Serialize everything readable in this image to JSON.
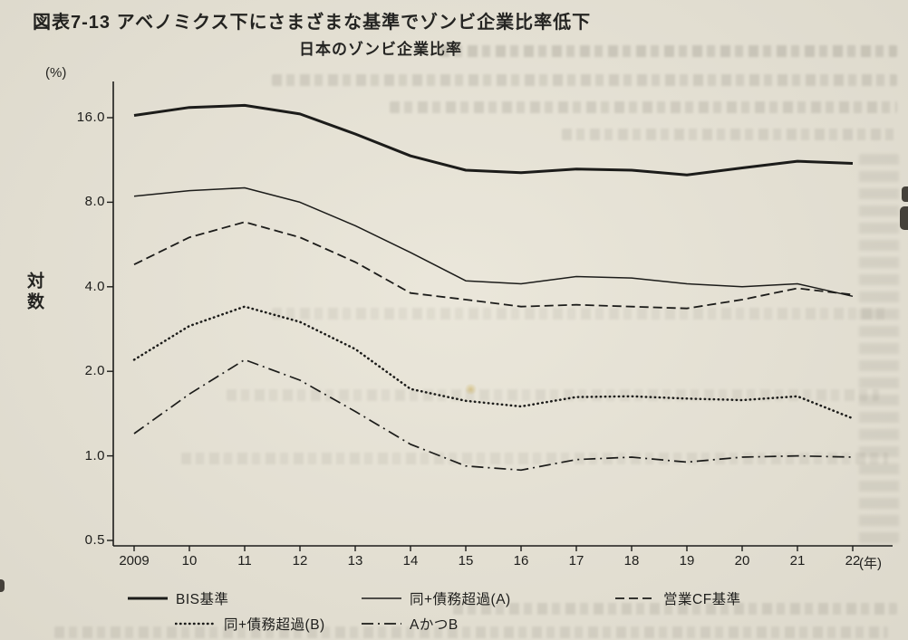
{
  "page": {
    "figure_title": "図表7-13 アベノミクス下にさまざまな基準でゾンビ企業比率低下",
    "y_unit_label": "(%)",
    "x_unit_label": "(年)",
    "y_scale_label": "対数"
  },
  "colors": {
    "ink": "#1c1c1a",
    "paper": "#e9e5d8"
  },
  "chart_data": {
    "type": "line",
    "title": "日本のゾンビ企業比率",
    "xlabel": "年",
    "ylabel": "%",
    "y_scale": "log",
    "grid": false,
    "legend_position": "bottom",
    "ylim": [
      0.5,
      20
    ],
    "y_ticks": [
      16.0,
      8.0,
      4.0,
      2.0,
      1.0,
      0.5
    ],
    "x": [
      2009,
      2010,
      2011,
      2012,
      2013,
      2014,
      2015,
      2016,
      2017,
      2018,
      2019,
      2020,
      2021,
      2022
    ],
    "x_tick_labels": [
      "2009",
      "10",
      "11",
      "12",
      "13",
      "14",
      "15",
      "16",
      "17",
      "18",
      "19",
      "20",
      "21",
      "22"
    ],
    "series": [
      {
        "name": "BIS基準",
        "style": "solid-thick",
        "values": [
          16.3,
          17.4,
          17.7,
          16.5,
          14.0,
          11.7,
          10.4,
          10.2,
          10.5,
          10.4,
          10.0,
          10.6,
          11.2,
          11.0
        ]
      },
      {
        "name": "同+債務超過(A)",
        "style": "solid-thin",
        "values": [
          8.4,
          8.8,
          9.0,
          8.0,
          6.6,
          5.3,
          4.2,
          4.1,
          4.35,
          4.3,
          4.1,
          4.0,
          4.1,
          3.7
        ]
      },
      {
        "name": "営業CF基準",
        "style": "dashed",
        "values": [
          4.8,
          6.0,
          6.8,
          6.0,
          4.9,
          3.8,
          3.6,
          3.4,
          3.45,
          3.4,
          3.35,
          3.6,
          3.95,
          3.75
        ]
      },
      {
        "name": "同+債務超過(B)",
        "style": "dotted",
        "values": [
          2.2,
          2.9,
          3.4,
          3.0,
          2.4,
          1.73,
          1.57,
          1.5,
          1.62,
          1.63,
          1.6,
          1.58,
          1.63,
          1.36
        ]
      },
      {
        "name": "AかつB",
        "style": "dashdot",
        "values": [
          1.2,
          1.66,
          2.2,
          1.86,
          1.44,
          1.1,
          0.92,
          0.89,
          0.97,
          0.99,
          0.95,
          0.99,
          1.0,
          0.99
        ]
      }
    ]
  }
}
